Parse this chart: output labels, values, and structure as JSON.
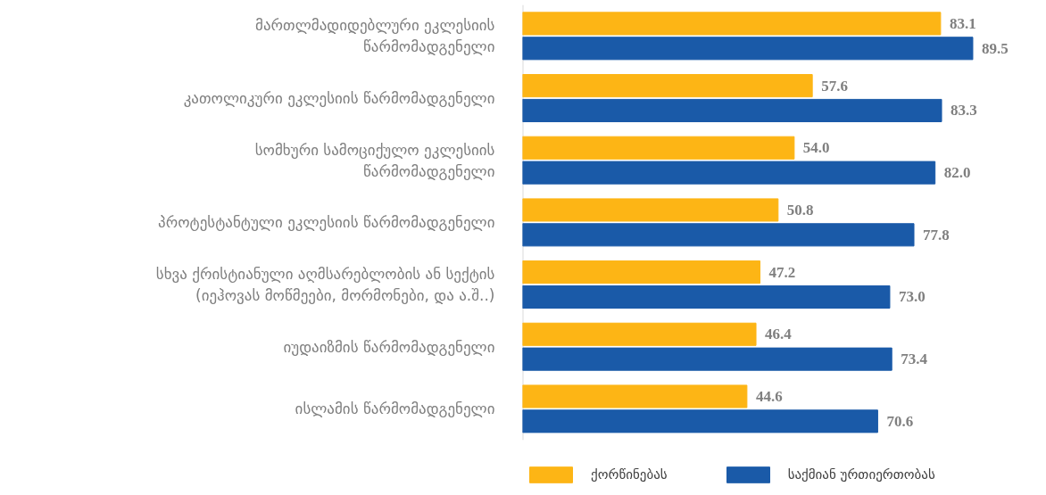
{
  "chart_data": {
    "type": "bar",
    "orientation": "horizontal",
    "categories": [
      "მართლმადიდებლური ეკლესიის\nწარმომადგენელი",
      "კათოლიკური ეკლესიის წარმომადგენელი",
      "სომხური სამოციქულო ეკლესიის\nწარმომადგენელი",
      "პროტესტანტული ეკლესიის წარმომადგენელი",
      "სხვა ქრისტიანული აღმსარებლობის ან სექტის\n(იეჰოვას მოწმეები, მორმონები, და ა.შ..)",
      "იუდაიზმის წარმომადგენელი",
      "ისლამის წარმომადგენელი"
    ],
    "series": [
      {
        "name": "ქორწინებას",
        "color": "#fdb515",
        "values": [
          83.1,
          57.6,
          54.0,
          50.8,
          47.2,
          46.4,
          44.6
        ],
        "value_labels": [
          "83.1",
          "57.6",
          "54.0",
          "50.8",
          "47.2",
          "46.4",
          "44.6"
        ]
      },
      {
        "name": "საქმიან ურთიერთობას",
        "color": "#1a5aa8",
        "values": [
          89.5,
          83.3,
          82.0,
          77.8,
          73.0,
          73.4,
          70.6
        ],
        "value_labels": [
          "89.5",
          "83.3",
          "82.0",
          "77.8",
          "73.0",
          "73.4",
          "70.6"
        ]
      }
    ],
    "legend": "bottom",
    "grid": false
  }
}
